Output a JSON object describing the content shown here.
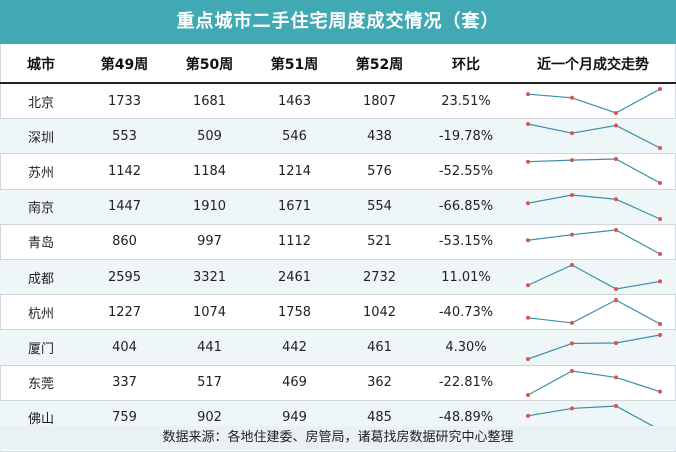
{
  "title": "重点城市二手住宅周度成交情况（套）",
  "headers": {
    "city": "城市",
    "w49": "第49周",
    "w50": "第50周",
    "w51": "第51周",
    "w52": "第52周",
    "ratio": "环比",
    "trend": "近一个月成交走势"
  },
  "rows": [
    {
      "city": "北京",
      "w49": 1733,
      "w50": 1681,
      "w51": 1463,
      "w52": 1807,
      "ratio": "23.51%"
    },
    {
      "city": "深圳",
      "w49": 553,
      "w50": 509,
      "w51": 546,
      "w52": 438,
      "ratio": "-19.78%"
    },
    {
      "city": "苏州",
      "w49": 1142,
      "w50": 1184,
      "w51": 1214,
      "w52": 576,
      "ratio": "-52.55%"
    },
    {
      "city": "南京",
      "w49": 1447,
      "w50": 1910,
      "w51": 1671,
      "w52": 554,
      "ratio": "-66.85%"
    },
    {
      "city": "青岛",
      "w49": 860,
      "w50": 997,
      "w51": 1112,
      "w52": 521,
      "ratio": "-53.15%"
    },
    {
      "city": "成都",
      "w49": 2595,
      "w50": 3321,
      "w51": 2461,
      "w52": 2732,
      "ratio": "11.01%"
    },
    {
      "city": "杭州",
      "w49": 1227,
      "w50": 1074,
      "w51": 1758,
      "w52": 1042,
      "ratio": "-40.73%"
    },
    {
      "city": "厦门",
      "w49": 404,
      "w50": 441,
      "w51": 442,
      "w52": 461,
      "ratio": "4.30%"
    },
    {
      "city": "东莞",
      "w49": 337,
      "w50": 517,
      "w51": 469,
      "w52": 362,
      "ratio": "-22.81%"
    },
    {
      "city": "佛山",
      "w49": 759,
      "w50": 902,
      "w51": 949,
      "w52": 485,
      "ratio": "-48.89%"
    }
  ],
  "footer": "数据来源：各地住建委、房管局，诸葛找房数据研究中心整理",
  "colors": {
    "title_bg": "#41a9b3",
    "line": "#3a8fa8",
    "dot": "#d9534f",
    "stripe": "#eef6f8"
  }
}
